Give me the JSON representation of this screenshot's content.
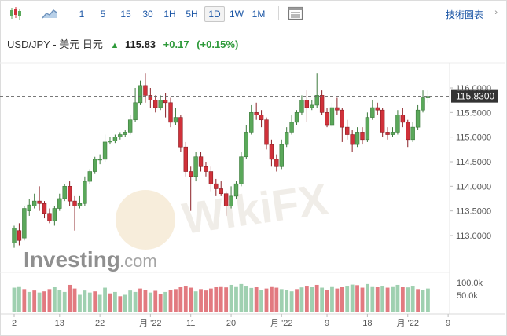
{
  "toolbar": {
    "intervals": [
      "1",
      "5",
      "15",
      "30",
      "1H",
      "5H",
      "1D",
      "1W",
      "1M"
    ],
    "active_interval": "1D",
    "tech_chart_label": "技術圖表"
  },
  "quote": {
    "symbol": "USD/JPY - 美元 日元",
    "price": "115.83",
    "change": "+0.17",
    "change_pct": "(+0.15%)"
  },
  "colors": {
    "up": "#2e9a3a",
    "candle_up": "#5aa85a",
    "candle_down": "#d0313a",
    "vol_up": "#9fd0b0",
    "vol_down": "#e27a80",
    "link": "#1a55a5"
  },
  "watermark": {
    "brand": "Investing",
    "suffix": ".com",
    "overlay": "WikiFX"
  },
  "chart_data": {
    "type": "candlestick",
    "price_axis": {
      "ticks": [
        "116.0000",
        "115.5000",
        "115.0000",
        "114.5000",
        "114.0000",
        "113.5000",
        "113.0000"
      ],
      "current": "115.8300",
      "ylim": [
        112.7,
        116.3
      ]
    },
    "volume_axis": {
      "ticks": [
        "100.0k",
        "50.0k"
      ],
      "ylim": [
        0,
        120
      ]
    },
    "x_ticks": [
      {
        "i": 0,
        "label": "2"
      },
      {
        "i": 9,
        "label": "13"
      },
      {
        "i": 17,
        "label": "22"
      },
      {
        "i": 27,
        "label": "月 '22"
      },
      {
        "i": 35,
        "label": "11"
      },
      {
        "i": 43,
        "label": "20"
      },
      {
        "i": 53,
        "label": "月 '22"
      },
      {
        "i": 62,
        "label": "9"
      },
      {
        "i": 70,
        "label": "18"
      },
      {
        "i": 78,
        "label": "月 '22"
      },
      {
        "i": 86,
        "label": "9"
      }
    ],
    "candles": [
      [
        112.85,
        113.15,
        112.75,
        113.2
      ],
      [
        113.1,
        112.9,
        112.8,
        113.25
      ],
      [
        112.95,
        113.55,
        112.9,
        113.6
      ],
      [
        113.5,
        113.62,
        113.4,
        113.75
      ],
      [
        113.6,
        113.7,
        113.55,
        113.85
      ],
      [
        113.7,
        113.65,
        113.5,
        114.0
      ],
      [
        113.65,
        113.45,
        113.35,
        113.7
      ],
      [
        113.45,
        113.3,
        113.25,
        113.55
      ],
      [
        113.3,
        113.55,
        113.2,
        113.6
      ],
      [
        113.55,
        113.75,
        113.5,
        113.85
      ],
      [
        113.75,
        114.0,
        113.7,
        114.05
      ],
      [
        114.0,
        113.7,
        113.6,
        114.1
      ],
      [
        113.7,
        113.6,
        113.1,
        113.8
      ],
      [
        113.6,
        113.65,
        113.55,
        113.8
      ],
      [
        113.65,
        114.1,
        113.6,
        114.2
      ],
      [
        114.1,
        114.3,
        114.05,
        114.35
      ],
      [
        114.3,
        114.55,
        114.25,
        114.6
      ],
      [
        114.55,
        114.55,
        114.45,
        114.65
      ],
      [
        114.55,
        114.9,
        114.5,
        115.05
      ],
      [
        114.9,
        114.92,
        114.85,
        115.0
      ],
      [
        114.92,
        115.0,
        114.88,
        115.05
      ],
      [
        115.0,
        115.05,
        114.95,
        115.1
      ],
      [
        115.05,
        115.1,
        115.0,
        115.15
      ],
      [
        115.1,
        115.35,
        115.05,
        115.45
      ],
      [
        115.35,
        115.7,
        115.3,
        116.0
      ],
      [
        115.7,
        116.05,
        115.65,
        116.15
      ],
      [
        116.05,
        115.85,
        115.7,
        116.3
      ],
      [
        115.85,
        115.75,
        115.6,
        116.0
      ],
      [
        115.75,
        115.6,
        115.5,
        115.85
      ],
      [
        115.6,
        115.75,
        115.55,
        115.85
      ],
      [
        115.75,
        115.7,
        115.4,
        115.9
      ],
      [
        115.7,
        115.3,
        115.2,
        115.8
      ],
      [
        115.3,
        115.4,
        115.25,
        115.6
      ],
      [
        115.4,
        114.8,
        114.7,
        115.45
      ],
      [
        114.8,
        114.3,
        114.2,
        114.9
      ],
      [
        114.3,
        114.2,
        113.5,
        114.4
      ],
      [
        114.2,
        114.6,
        114.1,
        114.7
      ],
      [
        114.6,
        114.4,
        114.3,
        114.7
      ],
      [
        114.4,
        114.3,
        114.2,
        114.5
      ],
      [
        114.3,
        114.05,
        113.9,
        114.4
      ],
      [
        114.05,
        113.95,
        113.8,
        114.15
      ],
      [
        113.95,
        113.85,
        113.8,
        114.1
      ],
      [
        113.85,
        113.6,
        113.4,
        113.9
      ],
      [
        113.6,
        113.8,
        113.55,
        114.0
      ],
      [
        113.8,
        114.05,
        113.75,
        114.1
      ],
      [
        114.05,
        114.6,
        114.0,
        114.7
      ],
      [
        114.6,
        115.1,
        114.55,
        115.25
      ],
      [
        115.1,
        115.5,
        115.05,
        115.65
      ],
      [
        115.5,
        115.45,
        115.35,
        115.7
      ],
      [
        115.45,
        115.35,
        115.2,
        115.55
      ],
      [
        115.35,
        114.85,
        114.75,
        115.4
      ],
      [
        114.85,
        114.55,
        114.4,
        114.95
      ],
      [
        114.55,
        114.4,
        114.3,
        114.65
      ],
      [
        114.4,
        114.85,
        114.35,
        114.95
      ],
      [
        114.85,
        115.1,
        114.8,
        115.2
      ],
      [
        115.1,
        115.3,
        115.05,
        115.45
      ],
      [
        115.3,
        115.5,
        115.25,
        115.55
      ],
      [
        115.5,
        115.75,
        115.45,
        115.85
      ],
      [
        115.75,
        115.6,
        115.3,
        115.95
      ],
      [
        115.6,
        115.65,
        115.55,
        115.75
      ],
      [
        115.65,
        115.85,
        115.6,
        116.3
      ],
      [
        115.85,
        115.5,
        115.45,
        115.95
      ],
      [
        115.5,
        115.25,
        115.2,
        115.6
      ],
      [
        115.25,
        115.6,
        115.2,
        115.7
      ],
      [
        115.6,
        115.55,
        115.45,
        115.8
      ],
      [
        115.55,
        115.2,
        114.9,
        115.6
      ],
      [
        115.2,
        115.05,
        114.95,
        115.35
      ],
      [
        115.05,
        114.85,
        114.7,
        115.15
      ],
      [
        114.85,
        115.1,
        114.8,
        115.2
      ],
      [
        115.1,
        114.95,
        114.85,
        115.2
      ],
      [
        114.95,
        115.4,
        114.9,
        115.5
      ],
      [
        115.4,
        115.6,
        115.35,
        115.75
      ],
      [
        115.6,
        115.55,
        115.45,
        115.7
      ],
      [
        115.55,
        115.1,
        115.0,
        115.6
      ],
      [
        115.1,
        115.05,
        114.95,
        115.2
      ],
      [
        115.05,
        115.1,
        115.0,
        115.2
      ],
      [
        115.1,
        115.45,
        115.05,
        115.55
      ],
      [
        115.45,
        115.3,
        115.2,
        115.6
      ],
      [
        115.3,
        114.95,
        114.8,
        115.35
      ],
      [
        114.95,
        115.2,
        114.9,
        115.3
      ],
      [
        115.2,
        115.55,
        115.15,
        115.65
      ],
      [
        115.55,
        115.8,
        115.5,
        115.95
      ],
      [
        115.8,
        115.83,
        115.7,
        115.95
      ]
    ],
    "volumes": [
      [
        85,
        1
      ],
      [
        90,
        1
      ],
      [
        80,
        0
      ],
      [
        70,
        1
      ],
      [
        75,
        0
      ],
      [
        68,
        1
      ],
      [
        72,
        0
      ],
      [
        80,
        0
      ],
      [
        88,
        1
      ],
      [
        78,
        1
      ],
      [
        70,
        1
      ],
      [
        95,
        0
      ],
      [
        82,
        0
      ],
      [
        60,
        1
      ],
      [
        75,
        1
      ],
      [
        68,
        1
      ],
      [
        72,
        0
      ],
      [
        60,
        1
      ],
      [
        85,
        1
      ],
      [
        65,
        0
      ],
      [
        70,
        1
      ],
      [
        55,
        0
      ],
      [
        60,
        1
      ],
      [
        75,
        1
      ],
      [
        70,
        1
      ],
      [
        82,
        0
      ],
      [
        78,
        0
      ],
      [
        68,
        1
      ],
      [
        74,
        0
      ],
      [
        62,
        0
      ],
      [
        70,
        1
      ],
      [
        76,
        0
      ],
      [
        80,
        0
      ],
      [
        88,
        0
      ],
      [
        92,
        0
      ],
      [
        85,
        0
      ],
      [
        72,
        1
      ],
      [
        80,
        0
      ],
      [
        75,
        0
      ],
      [
        82,
        0
      ],
      [
        88,
        0
      ],
      [
        90,
        0
      ],
      [
        86,
        0
      ],
      [
        95,
        1
      ],
      [
        90,
        1
      ],
      [
        98,
        1
      ],
      [
        92,
        1
      ],
      [
        84,
        1
      ],
      [
        88,
        0
      ],
      [
        76,
        1
      ],
      [
        82,
        0
      ],
      [
        90,
        0
      ],
      [
        85,
        0
      ],
      [
        80,
        1
      ],
      [
        78,
        1
      ],
      [
        72,
        1
      ],
      [
        80,
        0
      ],
      [
        86,
        1
      ],
      [
        92,
        0
      ],
      [
        88,
        1
      ],
      [
        95,
        0
      ],
      [
        85,
        1
      ],
      [
        78,
        0
      ],
      [
        90,
        1
      ],
      [
        82,
        0
      ],
      [
        88,
        0
      ],
      [
        92,
        1
      ],
      [
        96,
        1
      ],
      [
        94,
        0
      ],
      [
        85,
        0
      ],
      [
        98,
        1
      ],
      [
        90,
        1
      ],
      [
        88,
        0
      ],
      [
        92,
        1
      ],
      [
        85,
        0
      ],
      [
        90,
        1
      ],
      [
        95,
        1
      ],
      [
        88,
        0
      ],
      [
        86,
        1
      ],
      [
        92,
        1
      ],
      [
        80,
        0
      ],
      [
        78,
        1
      ],
      [
        82,
        1
      ]
    ]
  }
}
